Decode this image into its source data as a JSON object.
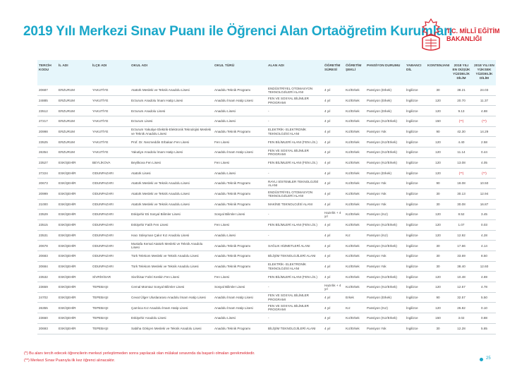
{
  "title": "2019 Yılı Merkezi Sınav Puanı ile Öğrenci Alan Ortaöğretim Kurumları",
  "logo": {
    "line1": "T.C. MİLLÎ EĞİTİM",
    "line2": "BAKANLIĞI",
    "color": "#d9232e"
  },
  "headers": [
    "TERCİH KODU",
    "İL ADI",
    "İLÇE ADI",
    "OKUL ADI",
    "OKUL TÜRÜ",
    "ALAN ADI",
    "ÖĞRETİM SÜRESİ",
    "ÖĞRETİM ŞEKLİ",
    "PANSİYON DURUMU",
    "YABANCI DİL",
    "KONTENJANI",
    "2018 YILI EN DÜŞÜK YÜZDELİK DİLİM",
    "2018 YILI EN YÜKSEK YÜZDELİK DİLİM"
  ],
  "rows": [
    [
      "20687",
      "ERZURUM",
      "YAKUTİYE",
      "Atatürk Mesleki ve Teknik Anadolu Lisesi",
      "Anadolu Teknik Programı",
      "ENDÜSTRİYEL OTOMASYON TEKNOLOJİLERİ ALANI",
      "4 yıl",
      "Kız/Erkek",
      "Pansiyon (Erkek)",
      "İngilizce",
      "30",
      "38.21",
      "24.03"
    ],
    [
      "24885",
      "ERZURUM",
      "YAKUTİYE",
      "Erzurum Anadolu İmam Hatip Lisesi",
      "Anadolu İmam Hatip Lisesi",
      "FEN VE SOSYAL BİLİMLER PROGRAMI",
      "4 yıl",
      "Kız/Erkek",
      "Pansiyon (Erkek)",
      "İngilizce",
      "120",
      "20.70",
      "11.37"
    ],
    [
      "23512",
      "ERZURUM",
      "YAKUTİYE",
      "Erzurum Anadolu Lisesi",
      "Anadolu Lisesi",
      "-",
      "4 yıl",
      "Kız/Erkek",
      "Pansiyon (Erkek)",
      "İngilizce",
      "120",
      "9.13",
      "4.88"
    ],
    [
      "27217",
      "ERZURUM",
      "YAKUTİYE",
      "Erzurum Lisesi",
      "Anadolu Lisesi",
      "-",
      "4 yıl",
      "Kız/Erkek",
      "Pansiyon (Kız/Erkek)",
      "İngilizce",
      "150",
      "(**)",
      "(**)"
    ],
    [
      "20998",
      "ERZURUM",
      "YAKUTİYE",
      "Erzurum Yakutiye Elektrik-Elektronik Teknolojisi Mesleki ve Teknik Anadolu Lisesi",
      "Anadolu Teknik Programı",
      "ELEKTRİK- ELEKTRONİK TEKNOLOJİSİ ALANI",
      "4 yıl",
      "Kız/Erkek",
      "Pansiyon Yok",
      "İngilizce",
      "90",
      "42.30",
      "14.29"
    ],
    [
      "23525",
      "ERZURUM",
      "YAKUTİYE",
      "Prof. Dr. Necmeddin Erbakan Fen Lisesi",
      "Fen Lisesi",
      "FEN BİLİMLERİ ALANI (FEN LİS.)",
      "4 yıl",
      "Kız/Erkek",
      "Pansiyon (Kız/Erkek)",
      "İngilizce",
      "120",
      "4.40",
      "2.58"
    ],
    [
      "26354",
      "ERZURUM",
      "YAKUTİYE",
      "Yakutiye Anadolu İmam Hatip Lisesi",
      "Anadolu İmam Hatip Lisesi",
      "FEN VE SOSYAL BİLİMLER PROGRAMI",
      "4 yıl",
      "Kız/Erkek",
      "Pansiyon (Kız/Erkek)",
      "İngilizce",
      "120",
      "11.14",
      "0.44"
    ],
    [
      "23527",
      "ESKİŞEHİR",
      "BEYLİKOVA",
      "Beylikova Fen Lisesi",
      "Fen Lisesi",
      "FEN BİLİMLERİ ALANI (FEN LİS.)",
      "4 yıl",
      "Kız/Erkek",
      "Pansiyon (Kız/Erkek)",
      "İngilizce",
      "120",
      "13.08",
      "4.05"
    ],
    [
      "27224",
      "ESKİŞEHİR",
      "ODUNPAZARI",
      "Atatürk Lisesi",
      "Anadolu Lisesi",
      "-",
      "4 yıl",
      "Kız/Erkek",
      "Pansiyon (Erkek)",
      "İngilizce",
      "120",
      "(**)",
      "(**)"
    ],
    [
      "20673",
      "ESKİŞEHİR",
      "ODUNPAZARI",
      "Atatürk Mesleki ve Teknik Anadolu Lisesi",
      "Anadolu Teknik Programı",
      "RAYLI SİSTEMLER TEKNOLOJİSİ ALANI",
      "4 yıl",
      "Kız/Erkek",
      "Pansiyon Yok",
      "İngilizce",
      "90",
      "18.08",
      "10.50"
    ],
    [
      "20999",
      "ESKİŞEHİR",
      "ODUNPAZARI",
      "Atatürk Mesleki ve Teknik Anadolu Lisesi",
      "Anadolu Teknik Programı",
      "ENDÜSTRİYEL OTOMASYON TEKNOLOJİLERİ ALANI",
      "4 yıl",
      "Kız/Erkek",
      "Pansiyon Yok",
      "İngilizce",
      "30",
      "30.13",
      "12.94"
    ],
    [
      "21000",
      "ESKİŞEHİR",
      "ODUNPAZARI",
      "Atatürk Mesleki ve Teknik Anadolu Lisesi",
      "Anadolu Teknik Programı",
      "MAKİNE TEKNOLOJİSİ ALANI",
      "4 yıl",
      "Kız/Erkek",
      "Pansiyon Yok",
      "İngilizce",
      "30",
      "30.08",
      "16.87"
    ],
    [
      "23529",
      "ESKİŞEHİR",
      "ODUNPAZARI",
      "Eskişehir Eti Sosyal Bilimler Lisesi",
      "Sosyal Bilimler Lisesi",
      "-",
      "Hazırlık + 4 yıl",
      "Kız/Erkek",
      "Pansiyon (Kız)",
      "İngilizce",
      "120",
      "8.52",
      "3.45"
    ],
    [
      "23515",
      "ESKİŞEHİR",
      "ODUNPAZARI",
      "Eskişehir Fatih Fen Lisesi",
      "Fen Lisesi",
      "FEN BİLİMLERİ ALANI (FEN LİS.)",
      "4 yıl",
      "Kız/Erkek",
      "Pansiyon (Kız/Erkek)",
      "İngilizce",
      "120",
      "1.07",
      "0.03"
    ],
    [
      "23531",
      "ESKİŞEHİR",
      "ODUNPAZARI",
      "Hacı Süleyman Çakır Kız Anadolu Lisesi",
      "Anadolu Lisesi",
      "-",
      "4 yıl",
      "Kız",
      "Pansiyon (Kız)",
      "İngilizce",
      "120",
      "12.92",
      "4.28"
    ],
    [
      "20678",
      "ESKİŞEHİR",
      "ODUNPAZARI",
      "Mustafa Kemal Atatürk Mesleki ve Teknik Anadolu Lisesi",
      "Anadolu Teknik Programı",
      "SAĞLIK HİZMETLERİ ALANI",
      "4 yıl",
      "Kız/Erkek",
      "Pansiyon (Kız/Erkek)",
      "İngilizce",
      "30",
      "17.66",
      "4.14"
    ],
    [
      "20683",
      "ESKİŞEHİR",
      "ODUNPAZARI",
      "Türk Telekom Mesleki ve Teknik Anadolu Lisesi",
      "Anadolu Teknik Programı",
      "BİLİŞİM TEKNOLOJİLERİ ALANI",
      "4 yıl",
      "Kız/Erkek",
      "Pansiyon Yok",
      "İngilizce",
      "30",
      "33.69",
      "8.50"
    ],
    [
      "20684",
      "ESKİŞEHİR",
      "ODUNPAZARI",
      "Türk Telekom Mesleki ve Teknik Anadolu Lisesi",
      "Anadolu Teknik Programı",
      "ELEKTRİK- ELEKTRONİK TEKNOLOJİSİ ALANI",
      "4 yıl",
      "Kız/Erkek",
      "Pansiyon Yok",
      "İngilizce",
      "30",
      "38.40",
      "12.60"
    ],
    [
      "23532",
      "ESKİŞEHİR",
      "SİVRİHİSAR",
      "Sivrihisar Fahri Keskin Fen Lisesi",
      "Fen Lisesi",
      "FEN BİLİMLERİ ALANI (FEN LİS.)",
      "4 yıl",
      "Kız/Erkek",
      "Pansiyon (Kız/Erkek)",
      "İngilizce",
      "120",
      "10.48",
      "4.69"
    ],
    [
      "23659",
      "ESKİŞEHİR",
      "TEPEBAŞI",
      "Cemal Mümtaz Sosyal Bilimler Lisesi",
      "Sosyal Bilimler Lisesi",
      "-",
      "Hazırlık + 4 yıl",
      "Kız/Erkek",
      "Pansiyon (Kız/Erkek)",
      "İngilizce",
      "120",
      "12.57",
      "4.78"
    ],
    [
      "24702",
      "ESKİŞEHİR",
      "TEPEBAŞI",
      "Cevat Ülger Uluslararası Anadolu İmam Hatip Lisesi",
      "Anadolu İmam Hatip Lisesi",
      "FEN VE SOSYAL BİLİMLER PROGRAMI",
      "4 yıl",
      "Erkek",
      "Pansiyon (Erkek)",
      "İngilizce",
      "90",
      "32.57",
      "5.50"
    ],
    [
      "26355",
      "ESKİŞEHİR",
      "TEPEBAŞI",
      "Çamlıca Kız Anadolu İmam Hatip Lisesi",
      "Anadolu İmam Hatip Lisesi",
      "FEN VE SOSYAL BİLİMLER PROGRAMI",
      "4 yıl",
      "Kız",
      "Pansiyon (Kız)",
      "İngilizce",
      "120",
      "26.82",
      "0.10"
    ],
    [
      "23660",
      "ESKİŞEHİR",
      "TEPEBAŞI",
      "Eskişehir Anadolu Lisesi",
      "Anadolu Lisesi",
      "-",
      "4 yıl",
      "Kız/Erkek",
      "Pansiyon (Kız/Erkek)",
      "İngilizce",
      "150",
      "3.02",
      "0.88"
    ],
    [
      "20693",
      "ESKİŞEHİR",
      "TEPEBAŞI",
      "Sabiha Gökçen Mesleki ve Teknik Anadolu Lisesi",
      "Anadolu Teknik Programı",
      "BİLİŞİM TEKNOLOJİLERİ ALANI",
      "4 yıl",
      "Kız/Erkek",
      "Pansiyon Yok",
      "İngilizce",
      "30",
      "12.28",
      "5.85"
    ]
  ],
  "footnotes": [
    "(*) Bu alanı tercih edecek öğrencilerin merkezi yerleştirmeden sonra yapılacak olan mülakat sınavında da başarılı olmaları gerekmektedir.",
    "(**) Merkezi Sınav Puanıyla ilk kez öğrenci alınacaktır."
  ],
  "page_number": "25",
  "accent_color": "#1aa7c9"
}
